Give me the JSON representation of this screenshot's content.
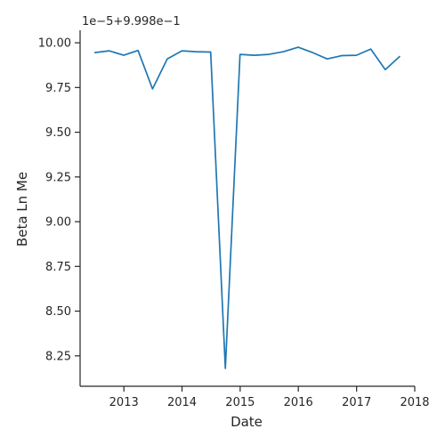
{
  "chart_data": {
    "type": "line",
    "title": "",
    "xlabel": "Date",
    "ylabel": "Beta Ln Me",
    "offset_text": "1e−5+9.998e−1",
    "grid": false,
    "legend": "none",
    "series_color": "#1f77b4",
    "axis_color": "#262626",
    "xlim": [
      "2012-04-01",
      "2018-01-01"
    ],
    "ylim": [
      8.08,
      10.07
    ],
    "x_ticks": [
      {
        "value": "2013-01-01",
        "label": "2013"
      },
      {
        "value": "2014-01-01",
        "label": "2014"
      },
      {
        "value": "2015-01-01",
        "label": "2015"
      },
      {
        "value": "2016-01-01",
        "label": "2016"
      },
      {
        "value": "2017-01-01",
        "label": "2017"
      },
      {
        "value": "2018-01-01",
        "label": "2018"
      }
    ],
    "y_ticks": [
      {
        "value": 8.25,
        "label": "8.25"
      },
      {
        "value": 8.5,
        "label": "8.50"
      },
      {
        "value": 8.75,
        "label": "8.75"
      },
      {
        "value": 9.0,
        "label": "9.00"
      },
      {
        "value": 9.25,
        "label": "9.25"
      },
      {
        "value": 9.5,
        "label": "9.50"
      },
      {
        "value": 9.75,
        "label": "9.75"
      },
      {
        "value": 10.0,
        "label": "10.00"
      }
    ],
    "series": [
      {
        "x": [
          "2012-06-30",
          "2012-09-30",
          "2012-12-31",
          "2013-03-31",
          "2013-06-30",
          "2013-09-30",
          "2013-12-31",
          "2014-03-31",
          "2014-06-30",
          "2014-09-30",
          "2014-12-31",
          "2015-03-31",
          "2015-06-30",
          "2015-09-30",
          "2015-12-31",
          "2016-03-31",
          "2016-06-30",
          "2016-09-30",
          "2016-12-31",
          "2017-03-31",
          "2017-06-30",
          "2017-09-30"
        ],
        "values": [
          9.945,
          9.955,
          9.93,
          9.957,
          9.742,
          9.91,
          9.955,
          9.95,
          9.948,
          8.18,
          9.935,
          9.93,
          9.935,
          9.95,
          9.975,
          9.945,
          9.91,
          9.928,
          9.93,
          9.965,
          9.85,
          9.925
        ]
      }
    ]
  }
}
